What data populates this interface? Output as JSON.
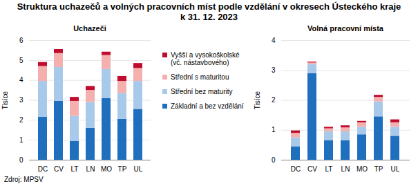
{
  "title": "Struktura uchazečů a volných pracovních míst podle vzdělání v okresech Ústeckého kraje\nk 31. 12. 2023",
  "caption": "Zdroj: MPSV",
  "chart_data": [
    {
      "type": "bar",
      "stacked": true,
      "title": "Uchazeči",
      "y_label": "Tisíce",
      "categories": [
        "DC",
        "CV",
        "LT",
        "LN",
        "MO",
        "TP",
        "UL"
      ],
      "ylim": [
        0,
        6
      ],
      "yticks": [
        0,
        1,
        2,
        3,
        4,
        5,
        6
      ],
      "grid": true,
      "legend": "right",
      "series": [
        {
          "name": "Základní a bez vzdělání",
          "color": "#1f6fbf",
          "values": [
            2.15,
            2.95,
            0.95,
            1.6,
            3.1,
            2.05,
            2.55
          ]
        },
        {
          "name": "Střední bez maturity",
          "color": "#a9c9ea",
          "values": [
            1.8,
            1.7,
            1.25,
            1.3,
            1.45,
            1.3,
            1.4
          ]
        },
        {
          "name": "Střední s maturitou",
          "color": "#f3b0ae",
          "values": [
            0.75,
            0.7,
            0.75,
            0.6,
            0.7,
            0.6,
            0.65
          ]
        },
        {
          "name": "Vyšší a vysokoškolské (vč. nástavbového)",
          "color": "#c00d2d",
          "values": [
            0.2,
            0.2,
            0.2,
            0.2,
            0.17,
            0.25,
            0.25
          ]
        }
      ]
    },
    {
      "type": "bar",
      "stacked": true,
      "title": "Volná pracovní místa",
      "y_label": "Tisíce",
      "categories": [
        "DC",
        "CV",
        "LT",
        "LN",
        "MO",
        "TP",
        "UL"
      ],
      "ylim": [
        0,
        4
      ],
      "yticks": [
        0,
        1,
        2,
        3,
        4
      ],
      "grid": true,
      "series": [
        {
          "name": "Základní a bez vzdělání",
          "color": "#1f6fbf",
          "values": [
            0.45,
            2.9,
            0.65,
            0.65,
            0.85,
            1.45,
            0.8
          ]
        },
        {
          "name": "Střední bez maturity",
          "color": "#a9c9ea",
          "values": [
            0.3,
            0.3,
            0.3,
            0.3,
            0.25,
            0.5,
            0.3
          ]
        },
        {
          "name": "Střední s maturitou",
          "color": "#f3b0ae",
          "values": [
            0.15,
            0.05,
            0.1,
            0.13,
            0.15,
            0.15,
            0.15
          ]
        },
        {
          "name": "Vyšší a vysokoškolské (vč. nástavbového)",
          "color": "#c00d2d",
          "values": [
            0.08,
            0.03,
            0.05,
            0.07,
            0.05,
            0.07,
            0.1
          ]
        }
      ]
    }
  ]
}
